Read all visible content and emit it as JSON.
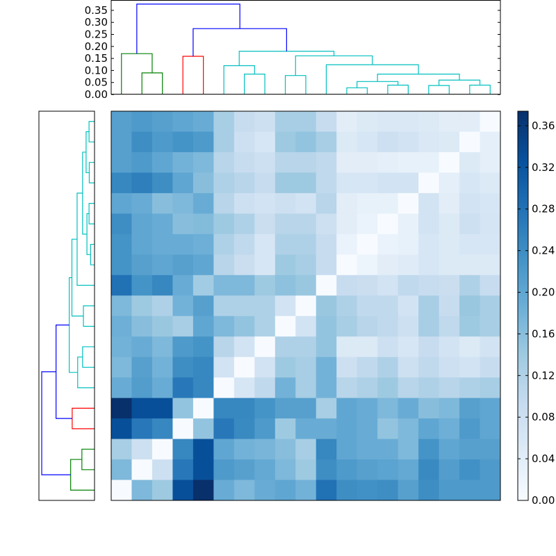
{
  "chart_data": {
    "type": "heatmap",
    "title": "",
    "colormap": [
      "#f7fbff",
      "#deebf7",
      "#c6dbef",
      "#9ecae1",
      "#6baed6",
      "#4292c6",
      "#2171b5",
      "#08519c",
      "#08306b"
    ],
    "vmin": 0.0,
    "vmax": 0.374,
    "colorbar": {
      "ticks": [
        0.0,
        0.04,
        0.08,
        0.12,
        0.16,
        0.2,
        0.24,
        0.28,
        0.32,
        0.36
      ],
      "tick_labels": [
        "0.00",
        "0.04",
        "0.08",
        "0.12",
        "0.16",
        "0.20",
        "0.24",
        "0.28",
        "0.32",
        "0.36"
      ],
      "placement": "right"
    },
    "matrix_rows_top_to_bottom": [
      [
        0.21,
        0.22,
        0.21,
        0.2,
        0.19,
        0.13,
        0.09,
        0.08,
        0.13,
        0.13,
        0.09,
        0.04,
        0.05,
        0.055,
        0.055,
        0.05,
        0.04,
        0.04,
        0
      ],
      [
        0.21,
        0.24,
        0.22,
        0.23,
        0.22,
        0.13,
        0.08,
        0.06,
        0.14,
        0.15,
        0.13,
        0.05,
        0.06,
        0.08,
        0.07,
        0.055,
        0.05,
        0,
        0.035
      ],
      [
        0.21,
        0.22,
        0.2,
        0.18,
        0.17,
        0.11,
        0.09,
        0.08,
        0.11,
        0.11,
        0.1,
        0.04,
        0.04,
        0.035,
        0.03,
        0.03,
        0,
        0.05,
        0.035
      ],
      [
        0.25,
        0.26,
        0.24,
        0.2,
        0.16,
        0.12,
        0.11,
        0.09,
        0.14,
        0.14,
        0.1,
        0.06,
        0.06,
        0.07,
        0.07,
        0,
        0.035,
        0.06,
        0.05
      ],
      [
        0.2,
        0.19,
        0.16,
        0.17,
        0.19,
        0.11,
        0.08,
        0.07,
        0.08,
        0.07,
        0.11,
        0.04,
        0.03,
        0.03,
        0,
        0.07,
        0.04,
        0.07,
        0.06
      ],
      [
        0.24,
        0.2,
        0.19,
        0.16,
        0.165,
        0.14,
        0.12,
        0.085,
        0.11,
        0.11,
        0.08,
        0.04,
        0.025,
        0,
        0.03,
        0.07,
        0.05,
        0.08,
        0.065
      ],
      [
        0.23,
        0.2,
        0.19,
        0.19,
        0.185,
        0.12,
        0.1,
        0.06,
        0.12,
        0.12,
        0.09,
        0.025,
        0,
        0.025,
        0.03,
        0.06,
        0.05,
        0.06,
        0.06
      ],
      [
        0.23,
        0.21,
        0.2,
        0.21,
        0.2,
        0.11,
        0.085,
        0.06,
        0.14,
        0.13,
        0.09,
        0,
        0.02,
        0.04,
        0.045,
        0.06,
        0.05,
        0.05,
        0.05
      ],
      [
        0.28,
        0.23,
        0.25,
        0.19,
        0.135,
        0.17,
        0.17,
        0.14,
        0.155,
        0.145,
        0,
        0.09,
        0.085,
        0.07,
        0.1,
        0.09,
        0.085,
        0.12,
        0.09
      ],
      [
        0.17,
        0.14,
        0.12,
        0.18,
        0.21,
        0.12,
        0.12,
        0.12,
        0.07,
        0,
        0.145,
        0.12,
        0.1,
        0.1,
        0.07,
        0.13,
        0.09,
        0.145,
        0.13
      ],
      [
        0.185,
        0.16,
        0.145,
        0.13,
        0.2,
        0.17,
        0.15,
        0.12,
        0,
        0.07,
        0.15,
        0.13,
        0.11,
        0.1,
        0.08,
        0.13,
        0.1,
        0.14,
        0.13
      ],
      [
        0.18,
        0.19,
        0.17,
        0.22,
        0.23,
        0.11,
        0.07,
        0,
        0.12,
        0.12,
        0.15,
        0.05,
        0.05,
        0.08,
        0.06,
        0.09,
        0.07,
        0.05,
        0.07
      ],
      [
        0.17,
        0.21,
        0.18,
        0.24,
        0.25,
        0.07,
        0,
        0.07,
        0.14,
        0.13,
        0.18,
        0.08,
        0.1,
        0.12,
        0.08,
        0.1,
        0.08,
        0.07,
        0.09
      ],
      [
        0.19,
        0.215,
        0.19,
        0.27,
        0.25,
        0,
        0.06,
        0.1,
        0.18,
        0.13,
        0.18,
        0.11,
        0.12,
        0.14,
        0.11,
        0.12,
        0.11,
        0.12,
        0.13
      ],
      [
        0.374,
        0.33,
        0.33,
        0.15,
        0,
        0.25,
        0.25,
        0.23,
        0.21,
        0.21,
        0.13,
        0.2,
        0.19,
        0.17,
        0.19,
        0.16,
        0.17,
        0.21,
        0.2
      ],
      [
        0.33,
        0.27,
        0.25,
        0,
        0.15,
        0.27,
        0.245,
        0.22,
        0.14,
        0.19,
        0.19,
        0.2,
        0.19,
        0.15,
        0.17,
        0.2,
        0.185,
        0.22,
        0.2
      ],
      [
        0.13,
        0.08,
        0,
        0.25,
        0.33,
        0.2,
        0.18,
        0.175,
        0.16,
        0.13,
        0.25,
        0.2,
        0.19,
        0.19,
        0.17,
        0.23,
        0.2,
        0.21,
        0.21
      ],
      [
        0.17,
        0,
        0.08,
        0.27,
        0.33,
        0.22,
        0.21,
        0.195,
        0.17,
        0.14,
        0.24,
        0.22,
        0.21,
        0.205,
        0.195,
        0.245,
        0.215,
        0.235,
        0.22
      ],
      [
        0,
        0.17,
        0.14,
        0.33,
        0.374,
        0.19,
        0.17,
        0.19,
        0.2,
        0.18,
        0.28,
        0.24,
        0.235,
        0.24,
        0.21,
        0.24,
        0.22,
        0.22,
        0.22
      ]
    ],
    "dendrogram": {
      "n_leaves": 19,
      "y_ticks": [
        0.0,
        0.05,
        0.1,
        0.15,
        0.2,
        0.25,
        0.3,
        0.35
      ],
      "y_tick_labels": [
        "0.00",
        "0.05",
        "0.10",
        "0.15",
        "0.20",
        "0.25",
        "0.30",
        "0.35"
      ],
      "ylim": [
        0,
        0.39
      ],
      "colors": {
        "g": "#008000",
        "r": "#ff0000",
        "c": "#00bfbf",
        "b": "#0000ff"
      },
      "merges": [
        [
          11,
          12,
          0.028,
          "c"
        ],
        [
          15,
          16,
          0.0375,
          "c"
        ],
        [
          13,
          14,
          0.039,
          "c"
        ],
        [
          17,
          18,
          0.039,
          "c"
        ],
        [
          19,
          21,
          0.054,
          "c"
        ],
        [
          20,
          22,
          0.06,
          "c"
        ],
        [
          8,
          9,
          0.079,
          "c"
        ],
        [
          6,
          7,
          0.085,
          "c"
        ],
        [
          23,
          24,
          0.085,
          "c"
        ],
        [
          1,
          2,
          0.09,
          "g"
        ],
        [
          5,
          26,
          0.12,
          "c"
        ],
        [
          10,
          27,
          0.124,
          "c"
        ],
        [
          3,
          4,
          0.159,
          "r"
        ],
        [
          25,
          30,
          0.161,
          "c"
        ],
        [
          0,
          28,
          0.17,
          "g"
        ],
        [
          29,
          32,
          0.18,
          "c"
        ],
        [
          31,
          34,
          0.274,
          "b"
        ],
        [
          33,
          35,
          0.376,
          "b"
        ]
      ]
    }
  }
}
